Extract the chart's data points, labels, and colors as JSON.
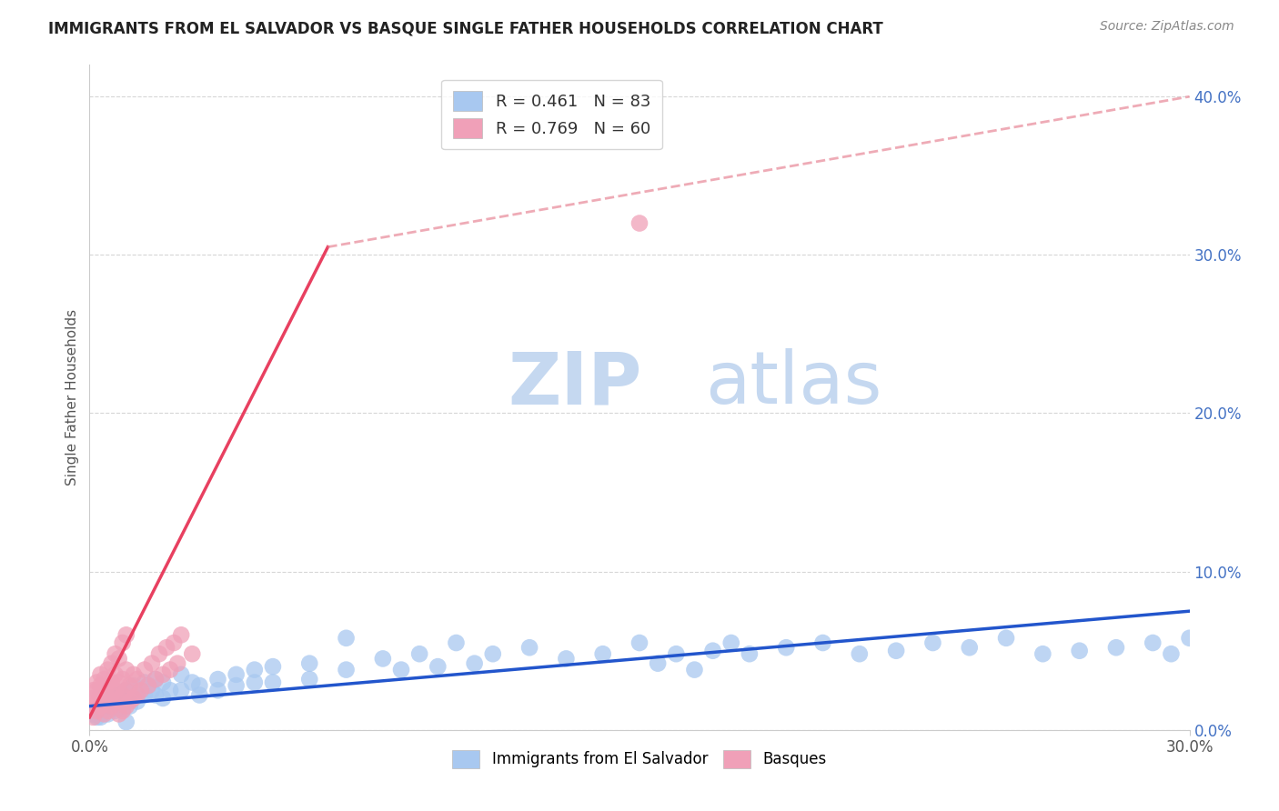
{
  "title": "IMMIGRANTS FROM EL SALVADOR VS BASQUE SINGLE FATHER HOUSEHOLDS CORRELATION CHART",
  "source": "Source: ZipAtlas.com",
  "ylabel": "Single Father Households",
  "legend_blue_r": "0.461",
  "legend_blue_n": "83",
  "legend_pink_r": "0.769",
  "legend_pink_n": "60",
  "blue_color": "#A8C8F0",
  "pink_color": "#F0A0B8",
  "blue_line_color": "#2255CC",
  "pink_line_color": "#E84060",
  "dashed_line_color": "#E88898",
  "xlim": [
    0.0,
    0.3
  ],
  "ylim": [
    0.0,
    0.42
  ],
  "background_color": "#ffffff",
  "watermark_zip": "ZIP",
  "watermark_atlas": "atlas",
  "watermark_color_zip": "#c5d8f0",
  "watermark_color_atlas": "#c5d8f0",
  "grid_color": "#cccccc",
  "blue_scatter": [
    [
      0.001,
      0.01
    ],
    [
      0.002,
      0.008
    ],
    [
      0.002,
      0.012
    ],
    [
      0.003,
      0.015
    ],
    [
      0.003,
      0.008
    ],
    [
      0.004,
      0.018
    ],
    [
      0.004,
      0.012
    ],
    [
      0.005,
      0.015
    ],
    [
      0.005,
      0.01
    ],
    [
      0.006,
      0.02
    ],
    [
      0.006,
      0.015
    ],
    [
      0.007,
      0.018
    ],
    [
      0.007,
      0.012
    ],
    [
      0.008,
      0.022
    ],
    [
      0.008,
      0.016
    ],
    [
      0.009,
      0.02
    ],
    [
      0.009,
      0.013
    ],
    [
      0.01,
      0.025
    ],
    [
      0.01,
      0.018
    ],
    [
      0.011,
      0.022
    ],
    [
      0.011,
      0.015
    ],
    [
      0.012,
      0.028
    ],
    [
      0.012,
      0.02
    ],
    [
      0.013,
      0.025
    ],
    [
      0.013,
      0.018
    ],
    [
      0.014,
      0.022
    ],
    [
      0.015,
      0.03
    ],
    [
      0.015,
      0.022
    ],
    [
      0.016,
      0.028
    ],
    [
      0.017,
      0.025
    ],
    [
      0.018,
      0.032
    ],
    [
      0.018,
      0.022
    ],
    [
      0.02,
      0.03
    ],
    [
      0.02,
      0.02
    ],
    [
      0.022,
      0.025
    ],
    [
      0.025,
      0.035
    ],
    [
      0.025,
      0.025
    ],
    [
      0.028,
      0.03
    ],
    [
      0.03,
      0.028
    ],
    [
      0.03,
      0.022
    ],
    [
      0.035,
      0.032
    ],
    [
      0.035,
      0.025
    ],
    [
      0.04,
      0.035
    ],
    [
      0.04,
      0.028
    ],
    [
      0.045,
      0.038
    ],
    [
      0.045,
      0.03
    ],
    [
      0.05,
      0.04
    ],
    [
      0.05,
      0.03
    ],
    [
      0.06,
      0.042
    ],
    [
      0.06,
      0.032
    ],
    [
      0.07,
      0.058
    ],
    [
      0.07,
      0.038
    ],
    [
      0.08,
      0.045
    ],
    [
      0.085,
      0.038
    ],
    [
      0.09,
      0.048
    ],
    [
      0.095,
      0.04
    ],
    [
      0.1,
      0.055
    ],
    [
      0.105,
      0.042
    ],
    [
      0.11,
      0.048
    ],
    [
      0.12,
      0.052
    ],
    [
      0.13,
      0.045
    ],
    [
      0.14,
      0.048
    ],
    [
      0.15,
      0.055
    ],
    [
      0.155,
      0.042
    ],
    [
      0.16,
      0.048
    ],
    [
      0.165,
      0.038
    ],
    [
      0.17,
      0.05
    ],
    [
      0.175,
      0.055
    ],
    [
      0.18,
      0.048
    ],
    [
      0.19,
      0.052
    ],
    [
      0.2,
      0.055
    ],
    [
      0.21,
      0.048
    ],
    [
      0.22,
      0.05
    ],
    [
      0.23,
      0.055
    ],
    [
      0.24,
      0.052
    ],
    [
      0.25,
      0.058
    ],
    [
      0.26,
      0.048
    ],
    [
      0.27,
      0.05
    ],
    [
      0.28,
      0.052
    ],
    [
      0.29,
      0.055
    ],
    [
      0.295,
      0.048
    ],
    [
      0.3,
      0.058
    ],
    [
      0.01,
      0.005
    ]
  ],
  "pink_scatter": [
    [
      0.001,
      0.008
    ],
    [
      0.001,
      0.015
    ],
    [
      0.001,
      0.02
    ],
    [
      0.001,
      0.025
    ],
    [
      0.002,
      0.012
    ],
    [
      0.002,
      0.018
    ],
    [
      0.002,
      0.025
    ],
    [
      0.002,
      0.03
    ],
    [
      0.003,
      0.015
    ],
    [
      0.003,
      0.022
    ],
    [
      0.003,
      0.028
    ],
    [
      0.003,
      0.035
    ],
    [
      0.004,
      0.01
    ],
    [
      0.004,
      0.018
    ],
    [
      0.004,
      0.025
    ],
    [
      0.004,
      0.032
    ],
    [
      0.005,
      0.012
    ],
    [
      0.005,
      0.02
    ],
    [
      0.005,
      0.028
    ],
    [
      0.005,
      0.038
    ],
    [
      0.006,
      0.015
    ],
    [
      0.006,
      0.022
    ],
    [
      0.006,
      0.03
    ],
    [
      0.006,
      0.042
    ],
    [
      0.007,
      0.018
    ],
    [
      0.007,
      0.025
    ],
    [
      0.007,
      0.035
    ],
    [
      0.007,
      0.048
    ],
    [
      0.008,
      0.01
    ],
    [
      0.008,
      0.02
    ],
    [
      0.008,
      0.03
    ],
    [
      0.008,
      0.045
    ],
    [
      0.009,
      0.012
    ],
    [
      0.009,
      0.022
    ],
    [
      0.009,
      0.032
    ],
    [
      0.009,
      0.055
    ],
    [
      0.01,
      0.015
    ],
    [
      0.01,
      0.025
    ],
    [
      0.01,
      0.038
    ],
    [
      0.01,
      0.06
    ],
    [
      0.011,
      0.018
    ],
    [
      0.011,
      0.028
    ],
    [
      0.012,
      0.02
    ],
    [
      0.012,
      0.035
    ],
    [
      0.013,
      0.022
    ],
    [
      0.013,
      0.032
    ],
    [
      0.014,
      0.025
    ],
    [
      0.015,
      0.038
    ],
    [
      0.016,
      0.028
    ],
    [
      0.017,
      0.042
    ],
    [
      0.018,
      0.032
    ],
    [
      0.019,
      0.048
    ],
    [
      0.02,
      0.035
    ],
    [
      0.021,
      0.052
    ],
    [
      0.022,
      0.038
    ],
    [
      0.023,
      0.055
    ],
    [
      0.024,
      0.042
    ],
    [
      0.025,
      0.06
    ],
    [
      0.028,
      0.048
    ],
    [
      0.15,
      0.32
    ]
  ],
  "blue_trend": [
    0.0,
    0.3,
    0.015,
    0.075
  ],
  "pink_trend_solid": [
    0.0,
    0.065,
    0.008,
    0.305
  ],
  "pink_trend_dashed": [
    0.065,
    0.3,
    0.305,
    0.4
  ]
}
